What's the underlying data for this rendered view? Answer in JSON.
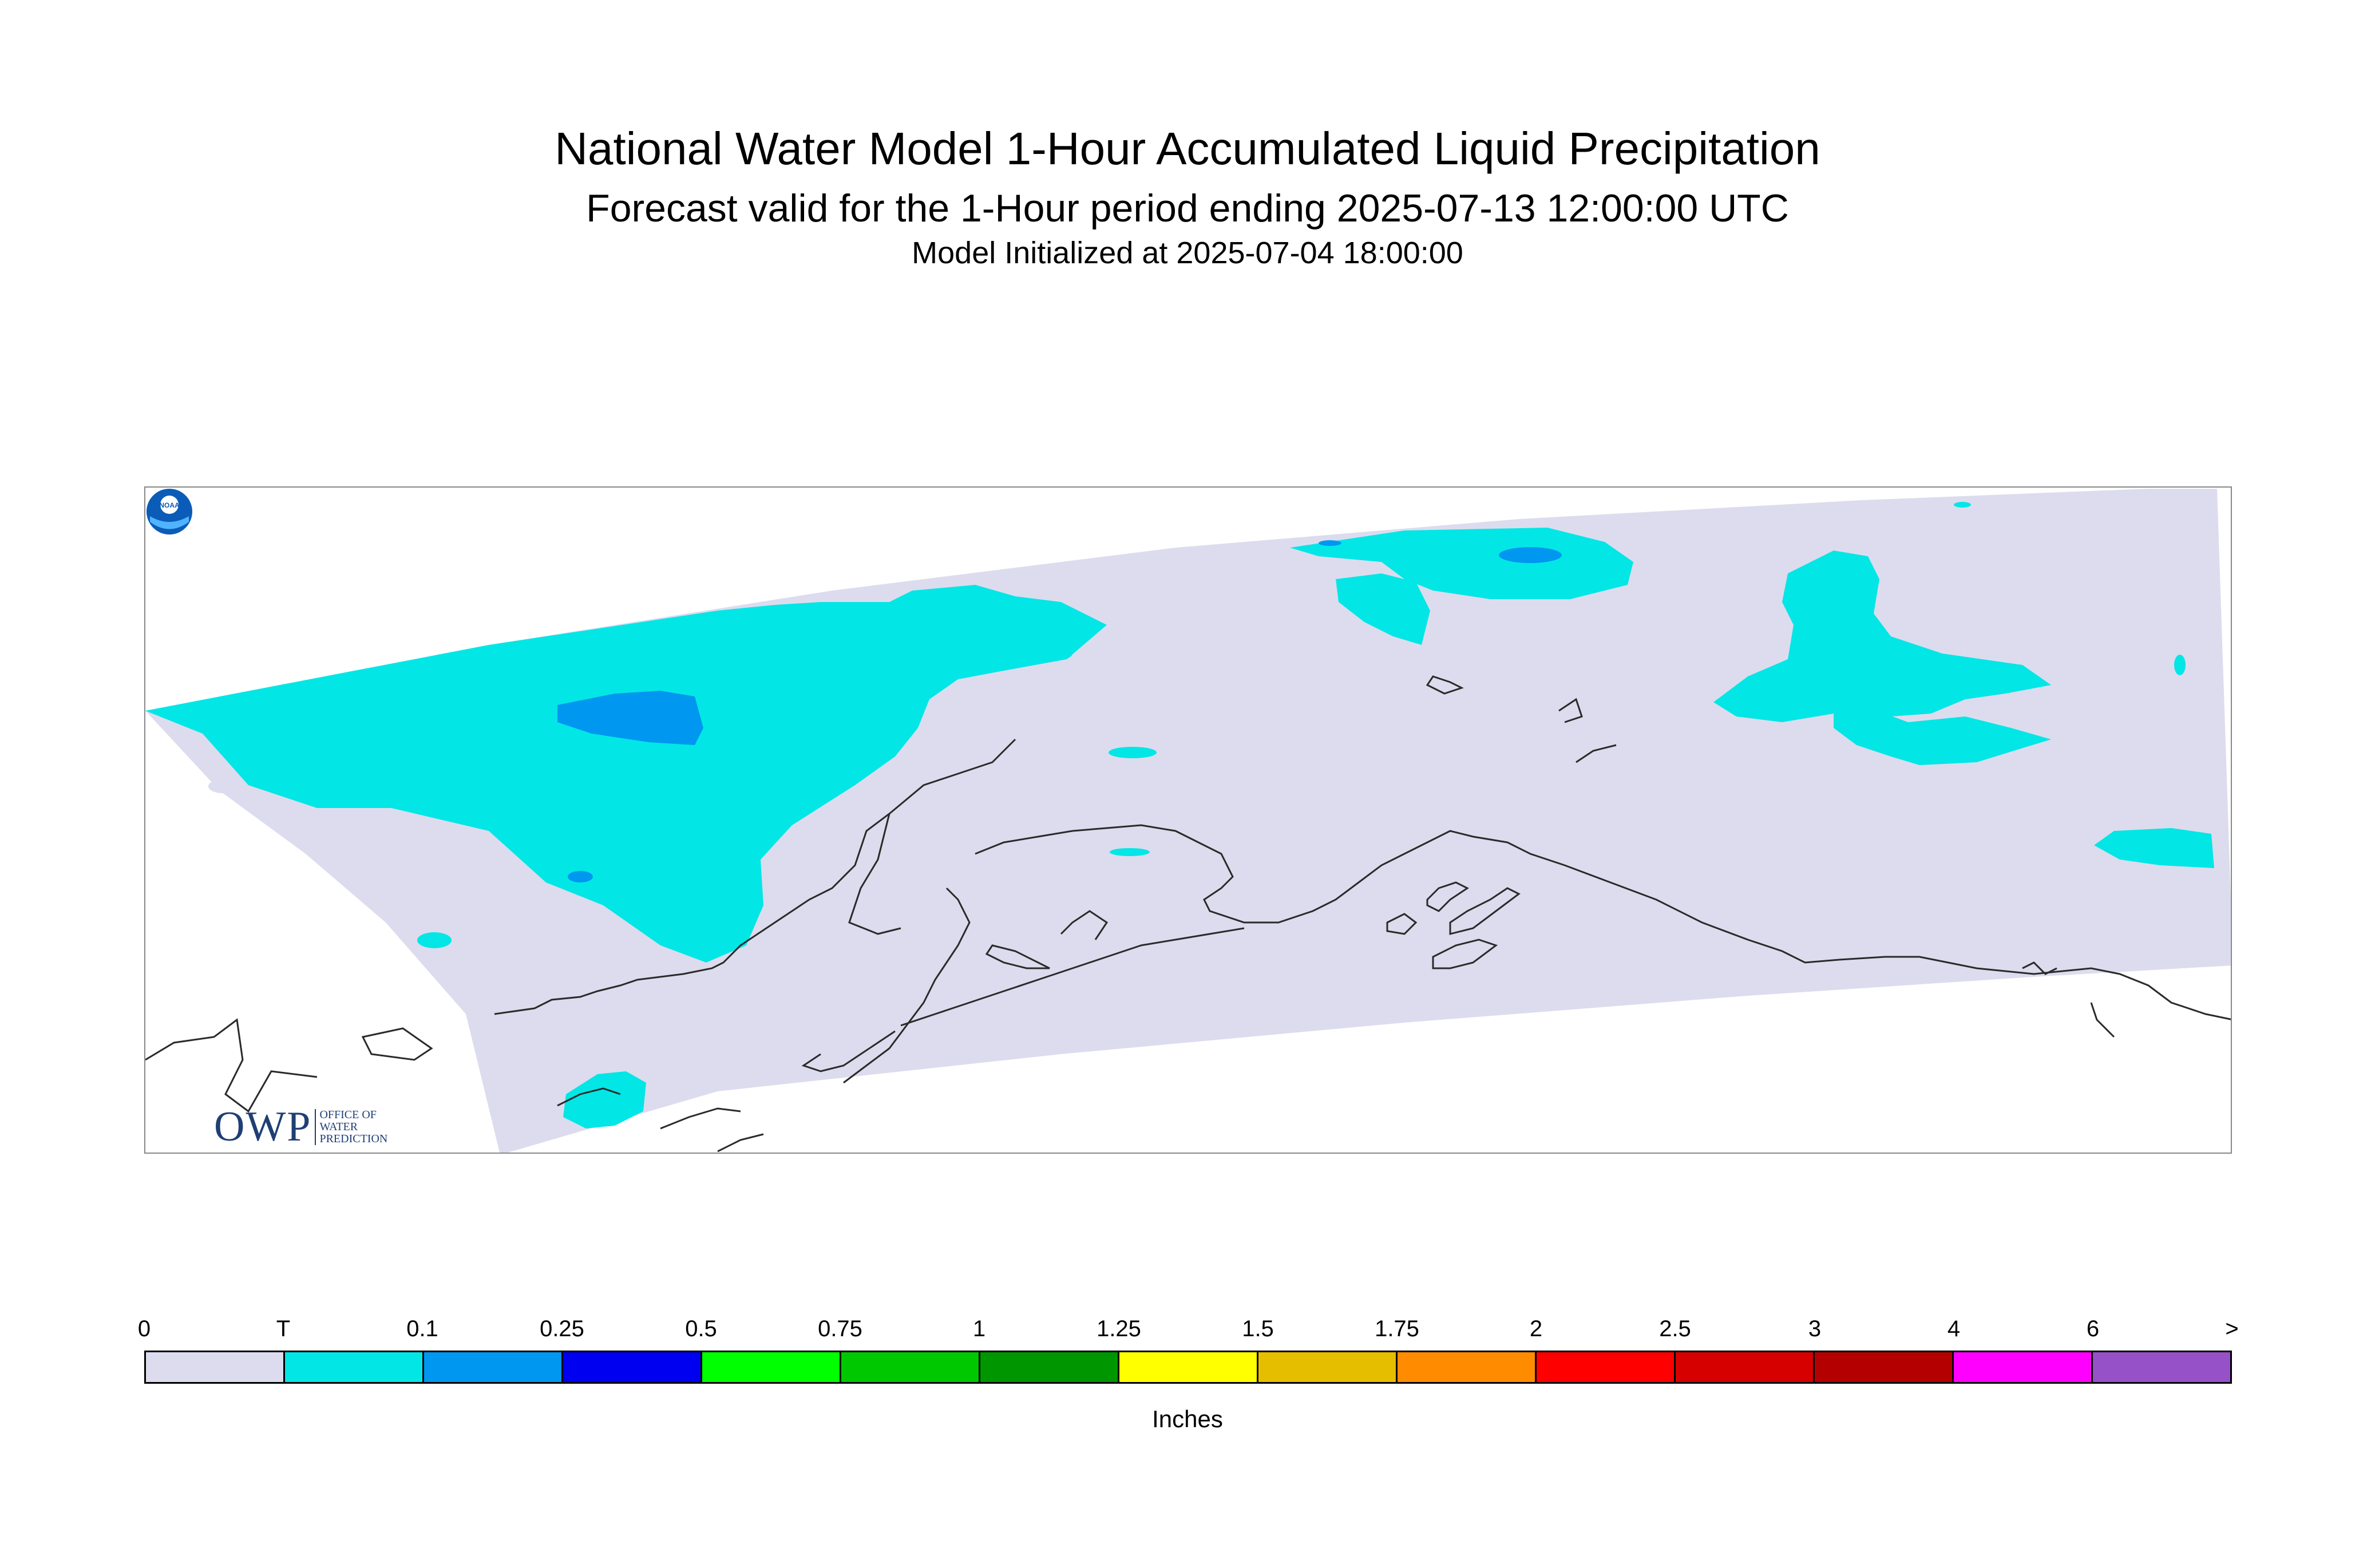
{
  "title": "National Water Model 1-Hour Accumulated Liquid Precipitation",
  "subtitle": "Forecast valid for the 1-Hour period ending 2025-07-13 12:00:00 UTC",
  "init_line": "Model Initialized at 2025-07-04 18:00:00",
  "logos": {
    "owp_main": "OWP",
    "owp_sub": "OFFICE OF WATER PREDICTION",
    "noaa": "NOAA"
  },
  "colors": {
    "domain": "#dcdcee",
    "trace": "#03e6e6",
    "light_blue": "#0097f0",
    "coast": "#2a2a2a"
  },
  "legend": {
    "units": "Inches",
    "ticks": [
      "0",
      "T",
      "0.1",
      "0.25",
      "0.5",
      "0.75",
      "1",
      "1.25",
      "1.5",
      "1.75",
      "2",
      "2.5",
      "3",
      "4",
      "6",
      ">"
    ],
    "colors": [
      "#dcdcee",
      "#03e6e6",
      "#0097f0",
      "#0000f0",
      "#00ff00",
      "#00c800",
      "#009600",
      "#ffff00",
      "#e6be00",
      "#ff8c00",
      "#ff0000",
      "#d70000",
      "#b40000",
      "#ff00ff",
      "#9650c8"
    ]
  },
  "map_data": {
    "region": "Alaska",
    "precip_areas": [
      {
        "category": "T",
        "location": "western Alaska / Bering coast"
      },
      {
        "category": "0.1",
        "location": "northwest Alaska interior"
      },
      {
        "category": "T",
        "location": "Arctic coast north"
      },
      {
        "category": "T",
        "location": "northeast Arctic / Beaufort Sea"
      },
      {
        "category": "T",
        "location": "far east Yukon border"
      },
      {
        "category": "T",
        "location": "Bristol Bay / southwest"
      }
    ]
  }
}
